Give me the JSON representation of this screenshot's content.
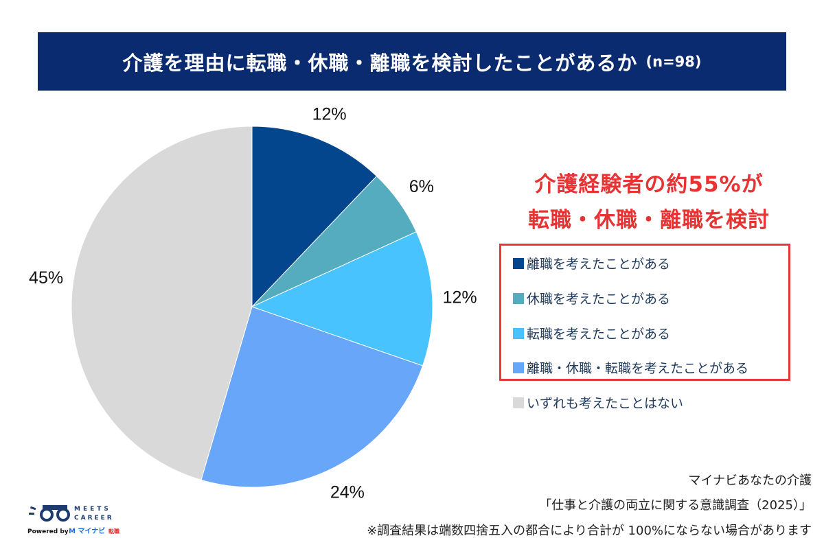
{
  "header": {
    "title": "介護を理由に転職・休職・離職を検討したことがあるか",
    "sample": "(n=98)"
  },
  "headline": {
    "line1": "介護経験者の約55%が",
    "line2": "転職・休職・離職を検討"
  },
  "chart_data": {
    "type": "pie",
    "title": "介護を理由に転職・休職・離職を検討したことがあるか",
    "start": "top",
    "direction": "clockwise",
    "legend_placement": "right",
    "slices": [
      {
        "name": "離職を考えたことがある",
        "value": 12,
        "label": "12%",
        "color": "#03468e"
      },
      {
        "name": "休職を考えたことがある",
        "value": 6,
        "label": "6%",
        "color": "#56acbf"
      },
      {
        "name": "転職を考えたことがある",
        "value": 12,
        "label": "12%",
        "color": "#48c3fd"
      },
      {
        "name": "離職・休職・転職を考えたことがある",
        "value": 24,
        "label": "24%",
        "color": "#67a6f9"
      },
      {
        "name": "いずれも考えたことはない",
        "value": 45,
        "label": "45%",
        "color": "#d9d9d9"
      }
    ]
  },
  "footer": {
    "source1": "マイナビあなたの介護",
    "source2": "「仕事と介護の両立に関する意識調査（2025）」",
    "note": "※調査結果は端数四捨五入の都合により合計が 100%にならない場合があります"
  },
  "logo": {
    "name": "MEETS CAREER",
    "powered": "Powered by マイナビ転職"
  }
}
